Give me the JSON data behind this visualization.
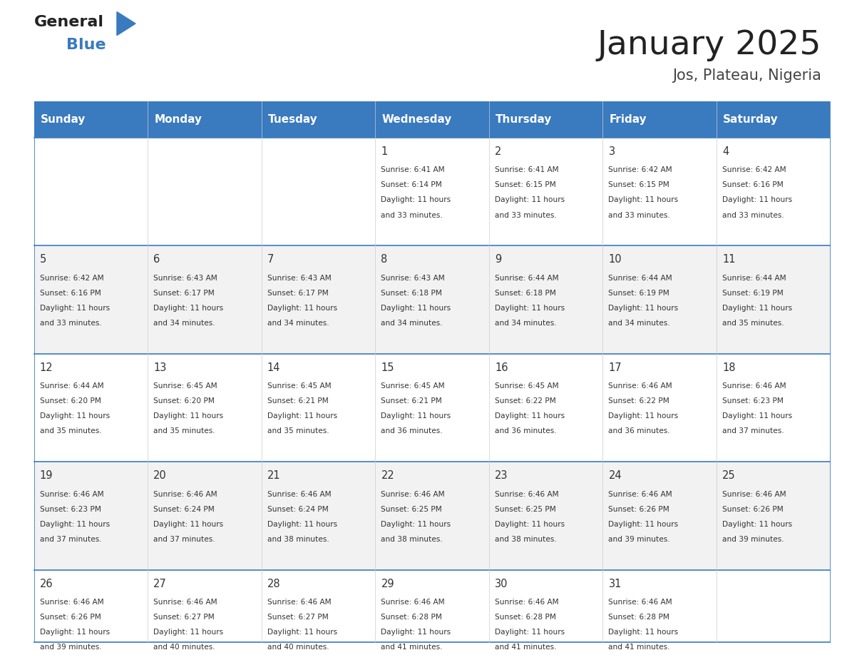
{
  "title": "January 2025",
  "subtitle": "Jos, Plateau, Nigeria",
  "days_of_week": [
    "Sunday",
    "Monday",
    "Tuesday",
    "Wednesday",
    "Thursday",
    "Friday",
    "Saturday"
  ],
  "header_bg": "#3a7abf",
  "header_text": "#ffffff",
  "bg_white": "#ffffff",
  "bg_light": "#f2f2f2",
  "text_color": "#333333",
  "line_color": "#3a7abf",
  "title_color": "#222222",
  "subtitle_color": "#444444",
  "calendar": [
    [
      null,
      null,
      null,
      {
        "day": 1,
        "sunrise": "6:41 AM",
        "sunset": "6:14 PM",
        "daylight": "11 hours and 33 minutes"
      },
      {
        "day": 2,
        "sunrise": "6:41 AM",
        "sunset": "6:15 PM",
        "daylight": "11 hours and 33 minutes"
      },
      {
        "day": 3,
        "sunrise": "6:42 AM",
        "sunset": "6:15 PM",
        "daylight": "11 hours and 33 minutes"
      },
      {
        "day": 4,
        "sunrise": "6:42 AM",
        "sunset": "6:16 PM",
        "daylight": "11 hours and 33 minutes"
      }
    ],
    [
      {
        "day": 5,
        "sunrise": "6:42 AM",
        "sunset": "6:16 PM",
        "daylight": "11 hours and 33 minutes"
      },
      {
        "day": 6,
        "sunrise": "6:43 AM",
        "sunset": "6:17 PM",
        "daylight": "11 hours and 34 minutes"
      },
      {
        "day": 7,
        "sunrise": "6:43 AM",
        "sunset": "6:17 PM",
        "daylight": "11 hours and 34 minutes"
      },
      {
        "day": 8,
        "sunrise": "6:43 AM",
        "sunset": "6:18 PM",
        "daylight": "11 hours and 34 minutes"
      },
      {
        "day": 9,
        "sunrise": "6:44 AM",
        "sunset": "6:18 PM",
        "daylight": "11 hours and 34 minutes"
      },
      {
        "day": 10,
        "sunrise": "6:44 AM",
        "sunset": "6:19 PM",
        "daylight": "11 hours and 34 minutes"
      },
      {
        "day": 11,
        "sunrise": "6:44 AM",
        "sunset": "6:19 PM",
        "daylight": "11 hours and 35 minutes"
      }
    ],
    [
      {
        "day": 12,
        "sunrise": "6:44 AM",
        "sunset": "6:20 PM",
        "daylight": "11 hours and 35 minutes"
      },
      {
        "day": 13,
        "sunrise": "6:45 AM",
        "sunset": "6:20 PM",
        "daylight": "11 hours and 35 minutes"
      },
      {
        "day": 14,
        "sunrise": "6:45 AM",
        "sunset": "6:21 PM",
        "daylight": "11 hours and 35 minutes"
      },
      {
        "day": 15,
        "sunrise": "6:45 AM",
        "sunset": "6:21 PM",
        "daylight": "11 hours and 36 minutes"
      },
      {
        "day": 16,
        "sunrise": "6:45 AM",
        "sunset": "6:22 PM",
        "daylight": "11 hours and 36 minutes"
      },
      {
        "day": 17,
        "sunrise": "6:46 AM",
        "sunset": "6:22 PM",
        "daylight": "11 hours and 36 minutes"
      },
      {
        "day": 18,
        "sunrise": "6:46 AM",
        "sunset": "6:23 PM",
        "daylight": "11 hours and 37 minutes"
      }
    ],
    [
      {
        "day": 19,
        "sunrise": "6:46 AM",
        "sunset": "6:23 PM",
        "daylight": "11 hours and 37 minutes"
      },
      {
        "day": 20,
        "sunrise": "6:46 AM",
        "sunset": "6:24 PM",
        "daylight": "11 hours and 37 minutes"
      },
      {
        "day": 21,
        "sunrise": "6:46 AM",
        "sunset": "6:24 PM",
        "daylight": "11 hours and 38 minutes"
      },
      {
        "day": 22,
        "sunrise": "6:46 AM",
        "sunset": "6:25 PM",
        "daylight": "11 hours and 38 minutes"
      },
      {
        "day": 23,
        "sunrise": "6:46 AM",
        "sunset": "6:25 PM",
        "daylight": "11 hours and 38 minutes"
      },
      {
        "day": 24,
        "sunrise": "6:46 AM",
        "sunset": "6:26 PM",
        "daylight": "11 hours and 39 minutes"
      },
      {
        "day": 25,
        "sunrise": "6:46 AM",
        "sunset": "6:26 PM",
        "daylight": "11 hours and 39 minutes"
      }
    ],
    [
      {
        "day": 26,
        "sunrise": "6:46 AM",
        "sunset": "6:26 PM",
        "daylight": "11 hours and 39 minutes"
      },
      {
        "day": 27,
        "sunrise": "6:46 AM",
        "sunset": "6:27 PM",
        "daylight": "11 hours and 40 minutes"
      },
      {
        "day": 28,
        "sunrise": "6:46 AM",
        "sunset": "6:27 PM",
        "daylight": "11 hours and 40 minutes"
      },
      {
        "day": 29,
        "sunrise": "6:46 AM",
        "sunset": "6:28 PM",
        "daylight": "11 hours and 41 minutes"
      },
      {
        "day": 30,
        "sunrise": "6:46 AM",
        "sunset": "6:28 PM",
        "daylight": "11 hours and 41 minutes"
      },
      {
        "day": 31,
        "sunrise": "6:46 AM",
        "sunset": "6:28 PM",
        "daylight": "11 hours and 41 minutes"
      },
      null
    ]
  ],
  "logo_text1": "General",
  "logo_text2": "Blue",
  "logo_color1": "#222222",
  "logo_color2": "#3a7abf",
  "logo_triangle_color": "#3a7abf"
}
